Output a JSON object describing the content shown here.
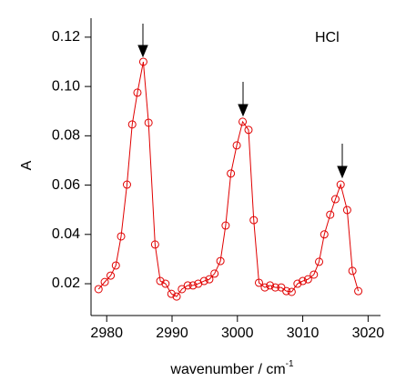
{
  "chart_data": {
    "type": "line",
    "annotation": "HCl",
    "x_label": "wavenumber / cm",
    "x_label_superscript": "-1",
    "y_label": "A",
    "color": "#e00000",
    "x": [
      2978.75,
      2979.7,
      2980.6,
      2981.4,
      2982.2,
      2983.1,
      2983.9,
      2984.7,
      2985.6,
      2986.4,
      2987.4,
      2988.2,
      2989.0,
      2989.9,
      2990.7,
      2991.5,
      2992.4,
      2993.2,
      2994.0,
      2994.9,
      2995.7,
      2996.5,
      2997.4,
      2998.2,
      2999.0,
      2999.9,
      3000.8,
      3001.7,
      3002.5,
      3003.3,
      3004.2,
      3005.0,
      3005.8,
      3006.7,
      3007.5,
      3008.3,
      3009.2,
      3010.0,
      3010.8,
      3011.7,
      3012.5,
      3013.3,
      3014.2,
      3015.0,
      3015.8,
      3016.8,
      3017.6,
      3018.5
    ],
    "values": [
      0.0178,
      0.0207,
      0.0233,
      0.0274,
      0.0392,
      0.0602,
      0.0846,
      0.0975,
      0.11,
      0.0853,
      0.0359,
      0.0211,
      0.02,
      0.0159,
      0.0148,
      0.0178,
      0.0193,
      0.0193,
      0.02,
      0.0211,
      0.0218,
      0.0241,
      0.0292,
      0.0436,
      0.0647,
      0.0761,
      0.0857,
      0.0824,
      0.0458,
      0.0204,
      0.0185,
      0.0193,
      0.0185,
      0.0185,
      0.017,
      0.0167,
      0.02,
      0.0211,
      0.0218,
      0.0237,
      0.0289,
      0.04,
      0.048,
      0.0543,
      0.0602,
      0.0499,
      0.0252,
      0.017
    ],
    "xlim": [
      2977.6,
      3021.9
    ],
    "ylim": [
      0.0071,
      0.1277
    ],
    "xticks": [
      2980,
      2990,
      3000,
      3010,
      3020
    ],
    "yticks": [
      0.02,
      0.04,
      0.06,
      0.08,
      {
        "value": 0.1,
        "label": "0.10"
      },
      0.12
    ]
  }
}
